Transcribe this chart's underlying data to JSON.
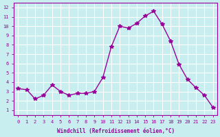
{
  "x": [
    0,
    1,
    2,
    3,
    4,
    5,
    6,
    7,
    8,
    9,
    10,
    11,
    12,
    13,
    14,
    15,
    16,
    17,
    18,
    19,
    20,
    21,
    22,
    23
  ],
  "y": [
    3.3,
    3.2,
    2.2,
    2.6,
    3.7,
    3.0,
    2.6,
    2.8,
    2.8,
    3.0,
    4.5,
    7.8,
    10.0,
    9.8,
    10.3,
    11.1,
    11.6,
    10.2,
    8.4,
    5.9,
    4.3,
    3.4,
    2.6,
    1.3
  ],
  "line_color": "#990099",
  "marker": "*",
  "marker_size": 4,
  "bg_color": "#c8eef0",
  "grid_color": "#ffffff",
  "ylabel_ticks": [
    1,
    2,
    3,
    4,
    5,
    6,
    7,
    8,
    9,
    10,
    11,
    12
  ],
  "xlabel_ticks": [
    0,
    1,
    2,
    3,
    4,
    5,
    6,
    7,
    8,
    9,
    10,
    11,
    12,
    13,
    14,
    15,
    16,
    17,
    18,
    19,
    20,
    21,
    22,
    23
  ],
  "xlim": [
    -0.5,
    23.5
  ],
  "ylim": [
    0.5,
    12.5
  ],
  "tick_color": "#990099",
  "label_color": "#990099",
  "xlabel": "Windchill (Refroidissement éolien,°C)"
}
